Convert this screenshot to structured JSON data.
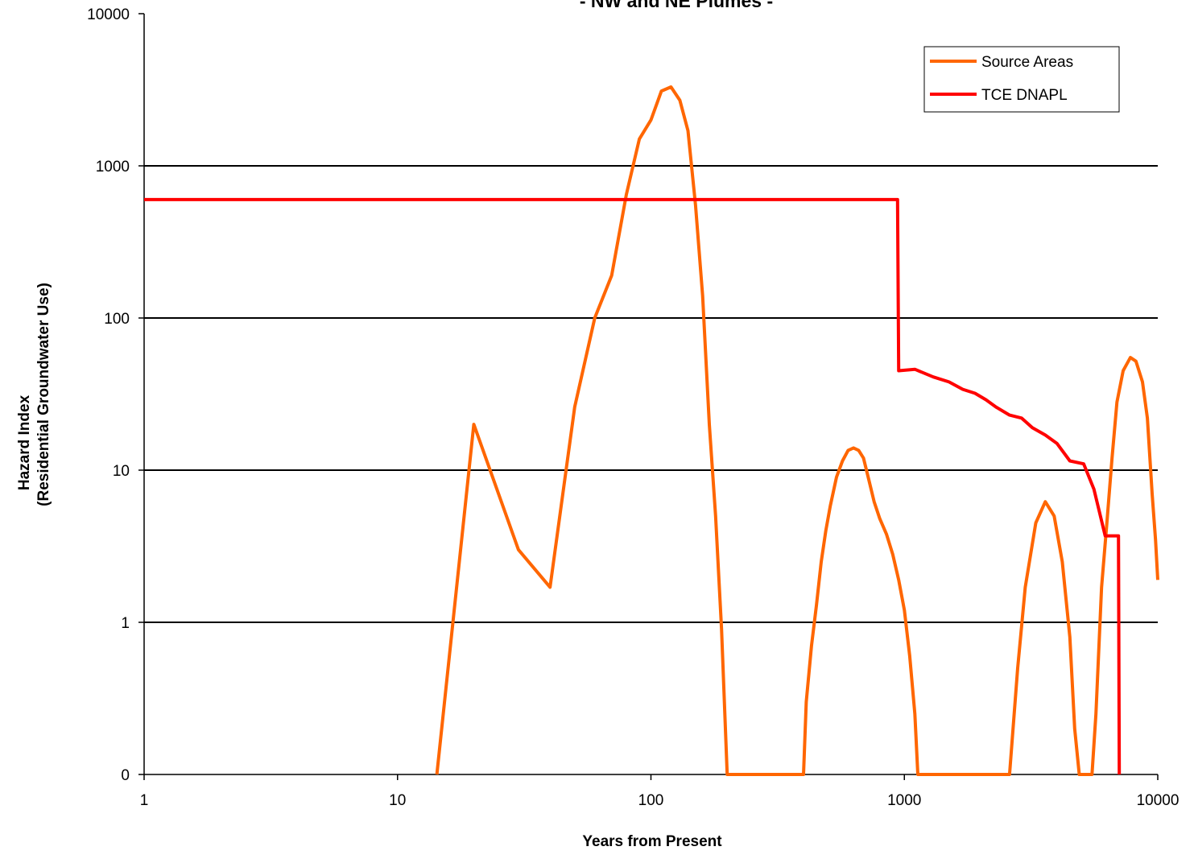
{
  "chart_data": {
    "type": "line",
    "title": "- NW and NE Plumes -",
    "xlabel": "Years from Present",
    "ylabel_lines": [
      "Hazard Index",
      "(Residential Groundwater Use)"
    ],
    "x_scale": "log",
    "y_scale": "log",
    "xlim": [
      1,
      10000
    ],
    "ylim": [
      0.1,
      10000
    ],
    "x_ticks": [
      1,
      10,
      100,
      1000,
      10000
    ],
    "x_tick_labels": [
      "1",
      "10",
      "100",
      "1000",
      "10000"
    ],
    "y_ticks": [
      0.1,
      1,
      10,
      100,
      1000,
      10000
    ],
    "y_tick_labels": [
      "0",
      "1",
      "10",
      "100",
      "1000",
      "10000"
    ],
    "gridlines_y": true,
    "gridlines_x": false,
    "legend_position": "top-right",
    "series": [
      {
        "name": "Source Areas",
        "color": "#ff6600",
        "points": [
          [
            14.3,
            0.1
          ],
          [
            20,
            20
          ],
          [
            30,
            3.0
          ],
          [
            40,
            1.7
          ],
          [
            50,
            26
          ],
          [
            60,
            100
          ],
          [
            70,
            190
          ],
          [
            80,
            650
          ],
          [
            90,
            1500
          ],
          [
            100,
            2000
          ],
          [
            110,
            3100
          ],
          [
            120,
            3300
          ],
          [
            130,
            2700
          ],
          [
            140,
            1700
          ],
          [
            150,
            550
          ],
          [
            160,
            140
          ],
          [
            170,
            20
          ],
          [
            180,
            5
          ],
          [
            190,
            0.9
          ],
          [
            200,
            0.1
          ],
          [
            400,
            0.1
          ],
          [
            410,
            0.3
          ],
          [
            430,
            0.7
          ],
          [
            450,
            1.3
          ],
          [
            470,
            2.5
          ],
          [
            490,
            4
          ],
          [
            510,
            5.8
          ],
          [
            540,
            9
          ],
          [
            570,
            11.5
          ],
          [
            600,
            13.5
          ],
          [
            630,
            14
          ],
          [
            660,
            13.5
          ],
          [
            690,
            12
          ],
          [
            720,
            9
          ],
          [
            760,
            6.2
          ],
          [
            800,
            4.8
          ],
          [
            850,
            3.8
          ],
          [
            900,
            2.8
          ],
          [
            950,
            1.9
          ],
          [
            1000,
            1.2
          ],
          [
            1050,
            0.6
          ],
          [
            1100,
            0.25
          ],
          [
            1130,
            0.1
          ],
          [
            2600,
            0.1
          ],
          [
            2800,
            0.5
          ],
          [
            3000,
            1.7
          ],
          [
            3300,
            4.5
          ],
          [
            3600,
            6.2
          ],
          [
            3900,
            5.0
          ],
          [
            4200,
            2.5
          ],
          [
            4500,
            0.8
          ],
          [
            4700,
            0.2
          ],
          [
            4900,
            0.1
          ],
          [
            5500,
            0.1
          ],
          [
            5700,
            0.25
          ],
          [
            6000,
            1.7
          ],
          [
            6300,
            4.5
          ],
          [
            6600,
            12
          ],
          [
            6900,
            28
          ],
          [
            7300,
            45
          ],
          [
            7800,
            55
          ],
          [
            8200,
            52
          ],
          [
            8700,
            38
          ],
          [
            9100,
            22
          ],
          [
            9500,
            7
          ],
          [
            9800,
            3.5
          ],
          [
            10000,
            1.9
          ]
        ]
      },
      {
        "name": "TCE DNAPL",
        "color": "#ff0000",
        "points": [
          [
            1,
            600
          ],
          [
            940,
            600
          ],
          [
            950,
            45
          ],
          [
            1100,
            46
          ],
          [
            1300,
            41
          ],
          [
            1500,
            38
          ],
          [
            1700,
            34
          ],
          [
            1900,
            32
          ],
          [
            2100,
            29
          ],
          [
            2300,
            26
          ],
          [
            2600,
            23
          ],
          [
            2900,
            22
          ],
          [
            3200,
            19
          ],
          [
            3600,
            17
          ],
          [
            4000,
            15
          ],
          [
            4500,
            11.5
          ],
          [
            5100,
            11
          ],
          [
            5600,
            7.5
          ],
          [
            6200,
            3.7
          ],
          [
            6300,
            3.7
          ],
          [
            7000,
            3.7
          ],
          [
            7050,
            0.1
          ]
        ]
      }
    ]
  }
}
